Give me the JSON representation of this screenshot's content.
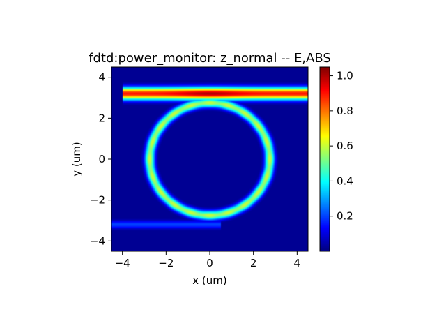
{
  "chart_data": {
    "type": "heatmap",
    "title": "fdtd:power_monitor: z_normal -- E,ABS",
    "xlabel": "x (um)",
    "ylabel": "y (um)",
    "xlim": [
      -4.5,
      4.5
    ],
    "ylim": [
      -4.5,
      4.5
    ],
    "x_ticks": [
      -4,
      -2,
      0,
      2,
      4
    ],
    "y_ticks": [
      -4,
      -2,
      0,
      2,
      4
    ],
    "x_tick_labels": [
      "−4",
      "−2",
      "0",
      "2",
      "4"
    ],
    "y_tick_labels": [
      "−4",
      "−2",
      "0",
      "2",
      "4"
    ],
    "colormap": "jet",
    "colorbar": {
      "range": [
        0.0,
        1.05
      ],
      "ticks": [
        0.2,
        0.4,
        0.6,
        0.8,
        1.0
      ],
      "tick_labels": [
        "0.2",
        "0.4",
        "0.6",
        "0.8",
        "1.0"
      ]
    },
    "grid": false,
    "field_features": [
      {
        "name": "bus waveguide (top)",
        "shape": "horizontal band",
        "x_range": [
          -4.0,
          4.5
        ],
        "y_center": 3.2,
        "half_width": 0.3,
        "peak_value": 1.0,
        "edge_value": 0.9
      },
      {
        "name": "ring resonator",
        "shape": "ring",
        "center": [
          0,
          0
        ],
        "radius": 2.75,
        "half_width": 0.25,
        "value": 0.6
      },
      {
        "name": "bus waveguide (bottom)",
        "shape": "horizontal band",
        "x_range": [
          -4.5,
          0.5
        ],
        "y_center": -3.2,
        "half_width": 0.2,
        "value": 0.2
      },
      {
        "name": "background",
        "value": 0.02
      }
    ]
  }
}
